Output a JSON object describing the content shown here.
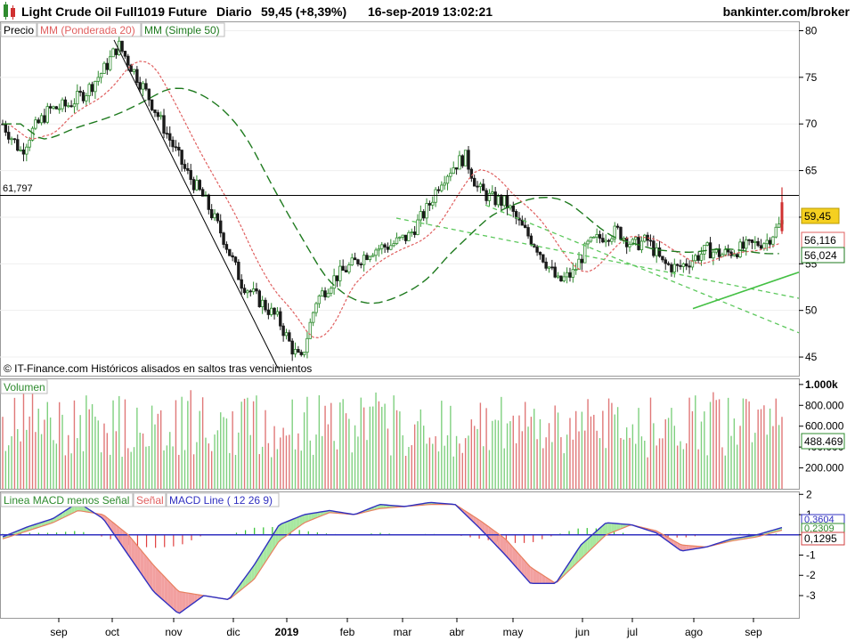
{
  "header": {
    "instrument": "Light Crude Oil Full1019 Future",
    "period": "Diario",
    "last": "59,45 (+8,39%)",
    "datetime": "16-sep-2019 13:02:21",
    "site": "bankinter.com/broker"
  },
  "price_panel": {
    "legend": {
      "precio": "Precio",
      "wma": "MM (Ponderada 20)",
      "sma": "MM (Simple 50)"
    },
    "ref_label": "61,797",
    "last_tag": "59,45",
    "wma_tag": "56,116",
    "sma_tag": "56,024",
    "copyright": "© IT-Finance.com Históricos alisados en saltos tras vencimientos",
    "y_ticks": [
      "80",
      "75",
      "70",
      "65",
      "60",
      "55",
      "50",
      "45"
    ]
  },
  "volume_panel": {
    "legend": "Volumen",
    "last_tag": "488.469",
    "y_ticks": [
      "1.000k",
      "800.000",
      "600.000",
      "400.000",
      "200.000"
    ]
  },
  "macd_panel": {
    "legend": {
      "hist": "Linea MACD menos Señal",
      "signal": "Señal",
      "macd": "MACD Line ( 12 26 9)"
    },
    "tag_macd": "0,3604",
    "tag_signal": "0,2309",
    "tag_hist": "0,1295",
    "y_ticks": [
      "2",
      "1",
      "0",
      "-1",
      "-2",
      "-3"
    ]
  },
  "x_axis": {
    "months": [
      "sep",
      "oct",
      "nov",
      "dic",
      "2019",
      "feb",
      "mar",
      "abr",
      "may",
      "jun",
      "jul",
      "ago",
      "sep"
    ]
  },
  "colors": {
    "up": "#2e8b2e",
    "down": "#1a1a1a",
    "wma": "#e06060",
    "sma": "#1e7a1e",
    "vol_up": "#7fd07f",
    "vol_down": "#e07878",
    "macd": "#3030c0",
    "signal": "#e88060",
    "hist_pos": "#2ec02e",
    "hist_neg": "#e04040",
    "last_tag_bg": "#f5d020",
    "trend_dash": "#5cc85c",
    "trend_solid": "#44c044"
  },
  "chart_data": {
    "type": "line",
    "title": "Light Crude Oil Full1019 Future",
    "x": [
      "sep",
      "oct",
      "nov",
      "dic",
      "2019",
      "feb",
      "mar",
      "abr",
      "may",
      "jun",
      "jul",
      "ago",
      "sep"
    ],
    "series": [
      {
        "name": "Precio",
        "values": [
          70,
          76,
          64,
          51,
          47,
          55,
          57,
          64,
          63,
          53,
          59,
          55,
          59.45
        ]
      },
      {
        "name": "MM (Ponderada 20)",
        "values": [
          70.5,
          74,
          69,
          55,
          49,
          53,
          56,
          62,
          63.5,
          55,
          57,
          56,
          56.116
        ]
      },
      {
        "name": "MM (Simple 50)",
        "values": [
          69,
          72,
          72,
          63,
          53,
          51,
          53,
          58,
          62,
          61,
          57,
          56,
          56.024
        ]
      }
    ],
    "ylim": [
      43,
      81
    ],
    "ref_line": 61.797,
    "last_close": 59.45,
    "volume": {
      "ylim": [
        0,
        1050000
      ],
      "last": 488469
    },
    "macd": {
      "ylim": [
        -4.1,
        2.1
      ],
      "macd_last": 0.3604,
      "signal_last": 0.2309,
      "hist_last": 0.1295,
      "macd_path": [
        -0.1,
        0.4,
        0.8,
        1.6,
        0.8,
        -1.0,
        -2.8,
        -3.9,
        -3.0,
        -3.2,
        -1.5,
        0.5,
        1.0,
        1.2,
        1.0,
        1.5,
        1.4,
        1.6,
        1.5,
        0.3,
        -1.0,
        -2.4,
        -2.4,
        -0.5,
        0.6,
        0.5,
        0.1,
        -0.8,
        -0.6,
        -0.2,
        0.0,
        0.36
      ],
      "signal_path": [
        -0.2,
        0.2,
        0.6,
        1.2,
        1.0,
        0.0,
        -1.5,
        -2.8,
        -3.0,
        -3.2,
        -2.2,
        -0.3,
        0.6,
        1.1,
        1.0,
        1.3,
        1.4,
        1.5,
        1.5,
        0.7,
        -0.2,
        -1.6,
        -2.4,
        -1.2,
        0.0,
        0.5,
        0.2,
        -0.5,
        -0.6,
        -0.3,
        -0.1,
        0.23
      ]
    }
  }
}
